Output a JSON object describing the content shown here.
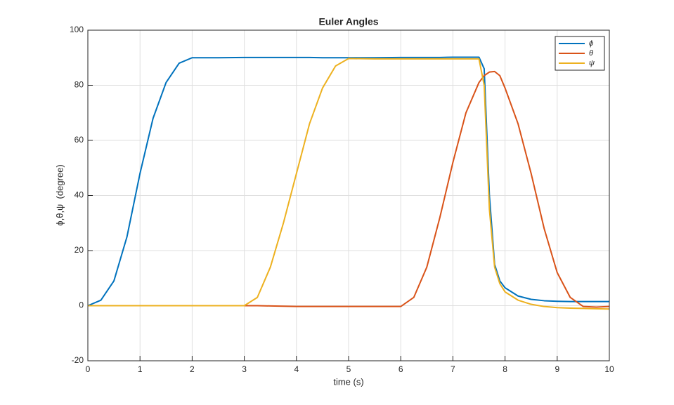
{
  "chart_data": {
    "type": "line",
    "title": "Euler Angles",
    "x_label": "time (s)",
    "y_label": "ϕ,θ,ψ  (degree)",
    "x": [
      0,
      0.25,
      0.5,
      0.75,
      1,
      1.25,
      1.5,
      1.75,
      2,
      2.5,
      3,
      3.25,
      3.5,
      3.75,
      4,
      4.25,
      4.5,
      4.75,
      5,
      5.5,
      6,
      6.25,
      6.5,
      6.75,
      7,
      7.25,
      7.5,
      7.6,
      7.7,
      7.8,
      7.9,
      8,
      8.25,
      8.5,
      8.75,
      9,
      9.25,
      9.5,
      9.75,
      10
    ],
    "series": [
      {
        "name": "ϕ",
        "color": "#0072BD",
        "values": [
          0,
          2,
          9,
          25,
          48,
          68,
          81,
          88,
          90,
          90,
          90.1,
          90.1,
          90.1,
          90.1,
          90.1,
          90.1,
          90,
          90,
          90,
          90,
          90.1,
          90.1,
          90.1,
          90.1,
          90.2,
          90.2,
          90.2,
          86,
          40,
          15,
          9,
          6.5,
          3.5,
          2.3,
          1.8,
          1.6,
          1.5,
          1.5,
          1.5,
          1.5
        ]
      },
      {
        "name": "θ",
        "color": "#D95319",
        "values": [
          0,
          0,
          0,
          0,
          0,
          0,
          0,
          0,
          0,
          0,
          0,
          0,
          -0.1,
          -0.2,
          -0.3,
          -0.3,
          -0.3,
          -0.3,
          -0.3,
          -0.3,
          -0.3,
          3,
          14,
          32,
          52,
          70,
          81,
          83.5,
          84.8,
          85,
          83.5,
          79,
          66,
          48,
          28,
          12,
          3,
          -0.3,
          -0.5,
          -0.3
        ]
      },
      {
        "name": "ψ",
        "color": "#EDB120",
        "values": [
          0,
          0,
          0,
          0,
          0,
          0,
          0,
          0,
          0,
          0,
          0,
          3,
          14,
          30,
          48,
          66,
          79,
          87,
          89.7,
          89.6,
          89.6,
          89.6,
          89.6,
          89.6,
          89.6,
          89.6,
          89.6,
          80,
          35,
          14,
          8,
          5,
          2,
          0.5,
          -0.3,
          -0.7,
          -0.9,
          -1.0,
          -1.1,
          -1.2
        ]
      }
    ],
    "xlim": [
      0,
      10
    ],
    "xticks": [
      0,
      1,
      2,
      3,
      4,
      5,
      6,
      7,
      8,
      9,
      10
    ],
    "ylim": [
      -20,
      100
    ],
    "yticks": [
      -20,
      0,
      20,
      40,
      60,
      80,
      100
    ],
    "grid": true,
    "legend": "top-right"
  }
}
